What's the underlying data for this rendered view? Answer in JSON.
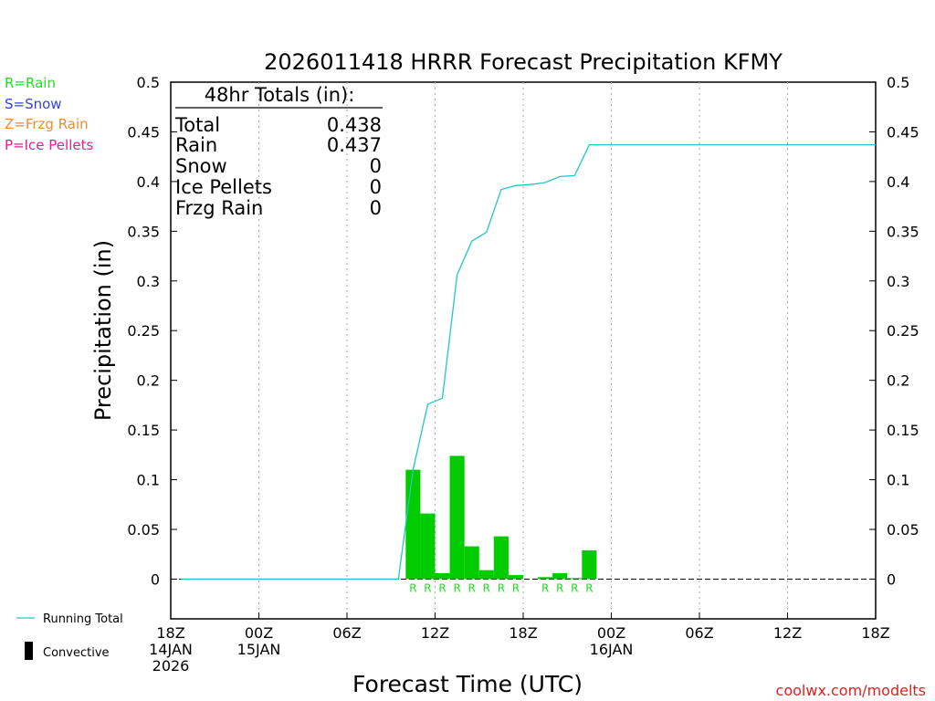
{
  "title": "2026011418 HRRR Forecast Precipitation KFMY",
  "type_legend": [
    {
      "label": "R=Rain",
      "color": "#22dd22"
    },
    {
      "label": "S=Snow",
      "color": "#3344dd"
    },
    {
      "label": "Z=Frzg Rain",
      "color": "#f08a30"
    },
    {
      "label": "P=Ice Pellets",
      "color": "#e0209a"
    }
  ],
  "totals": {
    "header": "48hr Totals (in):",
    "rows": [
      {
        "label": "Total",
        "value": "0.438"
      },
      {
        "label": "Rain",
        "value": "0.437"
      },
      {
        "label": "Snow",
        "value": "0"
      },
      {
        "label": "Ice Pellets",
        "value": "0"
      },
      {
        "label": "Frzg Rain",
        "value": "0"
      }
    ]
  },
  "bottom_legend": {
    "running_total": "Running Total",
    "convective": "Convective"
  },
  "credit": "coolwx.com/modelts",
  "colors": {
    "bar": "#00cc00",
    "running_total": "#22c6c6",
    "rain_code": "#22dd22",
    "grid": "#aaaaaa",
    "credit": "#e02020"
  },
  "chart_data": {
    "type": "bar",
    "xlabel": "Forecast Time (UTC)",
    "ylabel": "Precipitation (in)",
    "ylim": [
      -0.04,
      0.5
    ],
    "yticks": [
      0,
      0.05,
      0.1,
      0.15,
      0.2,
      0.25,
      0.3,
      0.35,
      0.4,
      0.45,
      0.5
    ],
    "xlim_hours": [
      0,
      48
    ],
    "xticks": [
      {
        "hour": 0,
        "lines": [
          "18Z",
          "14JAN",
          "2026"
        ]
      },
      {
        "hour": 6,
        "lines": [
          "00Z",
          "15JAN"
        ]
      },
      {
        "hour": 12,
        "lines": [
          "06Z"
        ]
      },
      {
        "hour": 18,
        "lines": [
          "12Z"
        ]
      },
      {
        "hour": 24,
        "lines": [
          "18Z"
        ]
      },
      {
        "hour": 30,
        "lines": [
          "00Z",
          "16JAN"
        ]
      },
      {
        "hour": 36,
        "lines": [
          "06Z"
        ]
      },
      {
        "hour": 42,
        "lines": [
          "12Z"
        ]
      },
      {
        "hour": 48,
        "lines": [
          "18Z"
        ]
      }
    ],
    "grid": "vertical dotted at tick hours",
    "bars": [
      {
        "hour": 16,
        "value": 0.11,
        "code": "R"
      },
      {
        "hour": 17,
        "value": 0.066,
        "code": "R"
      },
      {
        "hour": 18,
        "value": 0.006,
        "code": "R"
      },
      {
        "hour": 19,
        "value": 0.124,
        "code": "R"
      },
      {
        "hour": 20,
        "value": 0.033,
        "code": "R"
      },
      {
        "hour": 21,
        "value": 0.009,
        "code": "R"
      },
      {
        "hour": 22,
        "value": 0.043,
        "code": "R"
      },
      {
        "hour": 23,
        "value": 0.004,
        "code": "R"
      },
      {
        "hour": 25,
        "value": 0.002,
        "code": "R"
      },
      {
        "hour": 26,
        "value": 0.006,
        "code": "R"
      },
      {
        "hour": 27,
        "value": 0.001,
        "code": "R"
      },
      {
        "hour": 28,
        "value": 0.029,
        "code": "R"
      }
    ],
    "running_total": [
      {
        "hour": 0.7,
        "value": 0
      },
      {
        "hour": 15.5,
        "value": 0
      },
      {
        "hour": 16.5,
        "value": 0.11
      },
      {
        "hour": 17.5,
        "value": 0.176
      },
      {
        "hour": 18.5,
        "value": 0.182
      },
      {
        "hour": 19.5,
        "value": 0.306
      },
      {
        "hour": 20.5,
        "value": 0.34
      },
      {
        "hour": 21.5,
        "value": 0.349
      },
      {
        "hour": 22.5,
        "value": 0.392
      },
      {
        "hour": 23.5,
        "value": 0.396
      },
      {
        "hour": 24.5,
        "value": 0.397
      },
      {
        "hour": 25.5,
        "value": 0.399
      },
      {
        "hour": 26.5,
        "value": 0.405
      },
      {
        "hour": 27.5,
        "value": 0.406
      },
      {
        "hour": 28.5,
        "value": 0.437
      },
      {
        "hour": 48,
        "value": 0.437
      }
    ]
  }
}
